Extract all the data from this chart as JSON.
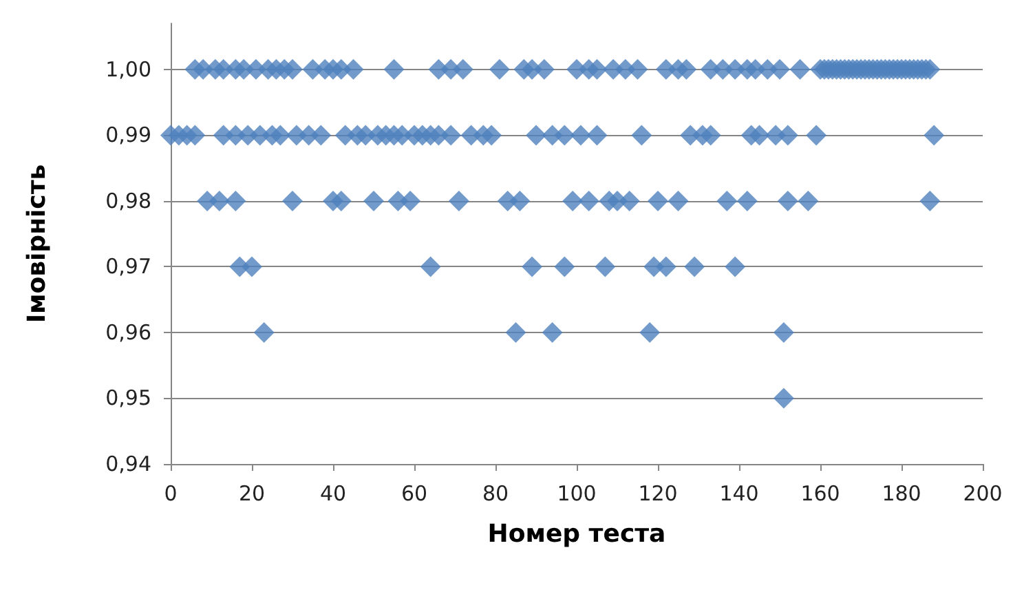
{
  "chart_data": {
    "type": "scatter",
    "xlabel": "Номер теста",
    "ylabel": "Імовірність",
    "marker": "diamond",
    "grid": "y",
    "xlim": [
      0,
      200
    ],
    "xticks": [
      0,
      20,
      40,
      60,
      80,
      100,
      120,
      140,
      160,
      180,
      200
    ],
    "ylim": [
      0.94,
      1.007
    ],
    "yticks": [
      {
        "value": 0.94,
        "label": "0,94"
      },
      {
        "value": 0.95,
        "label": "0,95"
      },
      {
        "value": 0.96,
        "label": "0,96"
      },
      {
        "value": 0.97,
        "label": "0,97"
      },
      {
        "value": 0.98,
        "label": "0,98"
      },
      {
        "value": 0.99,
        "label": "0,99"
      },
      {
        "value": 1.0,
        "label": "1,00"
      }
    ],
    "series": [
      {
        "color": "#4f81bd",
        "x": [
          6,
          8,
          11,
          13,
          16,
          18,
          21,
          24,
          26,
          28,
          30,
          35,
          38,
          40,
          42,
          45,
          55,
          66,
          69,
          72,
          81,
          87,
          89,
          92,
          100,
          103,
          105,
          109,
          112,
          115,
          122,
          125,
          127,
          133,
          136,
          139,
          142,
          144,
          147,
          150,
          155,
          160,
          161,
          162,
          163,
          164,
          165,
          166,
          167,
          168,
          169,
          170,
          171,
          172,
          173,
          174,
          175,
          176,
          177,
          178,
          179,
          180,
          181,
          182,
          183,
          184,
          185,
          186,
          187
        ],
        "values": [
          1.0,
          1.0,
          1.0,
          1.0,
          1.0,
          1.0,
          1.0,
          1.0,
          1.0,
          1.0,
          1.0,
          1.0,
          1.0,
          1.0,
          1.0,
          1.0,
          1.0,
          1.0,
          1.0,
          1.0,
          1.0,
          1.0,
          1.0,
          1.0,
          1.0,
          1.0,
          1.0,
          1.0,
          1.0,
          1.0,
          1.0,
          1.0,
          1.0,
          1.0,
          1.0,
          1.0,
          1.0,
          1.0,
          1.0,
          1.0,
          1.0,
          1.0,
          1.0,
          1.0,
          1.0,
          1.0,
          1.0,
          1.0,
          1.0,
          1.0,
          1.0,
          1.0,
          1.0,
          1.0,
          1.0,
          1.0,
          1.0,
          1.0,
          1.0,
          1.0,
          1.0,
          1.0,
          1.0,
          1.0,
          1.0,
          1.0,
          1.0,
          1.0,
          1.0
        ]
      },
      {
        "color": "#4f81bd",
        "x": [
          0,
          2,
          4,
          6,
          13,
          16,
          19,
          22,
          25,
          27,
          31,
          34,
          37,
          43,
          46,
          48,
          51,
          53,
          55,
          57,
          60,
          62,
          64,
          66,
          69,
          74,
          77,
          79,
          90,
          94,
          97,
          101,
          105,
          116,
          128,
          131,
          133,
          143,
          145,
          149,
          152,
          159,
          188
        ],
        "values": [
          0.99,
          0.99,
          0.99,
          0.99,
          0.99,
          0.99,
          0.99,
          0.99,
          0.99,
          0.99,
          0.99,
          0.99,
          0.99,
          0.99,
          0.99,
          0.99,
          0.99,
          0.99,
          0.99,
          0.99,
          0.99,
          0.99,
          0.99,
          0.99,
          0.99,
          0.99,
          0.99,
          0.99,
          0.99,
          0.99,
          0.99,
          0.99,
          0.99,
          0.99,
          0.99,
          0.99,
          0.99,
          0.99,
          0.99,
          0.99,
          0.99,
          0.99,
          0.99
        ]
      },
      {
        "color": "#4f81bd",
        "x": [
          9,
          12,
          16,
          30,
          40,
          42,
          50,
          56,
          59,
          71,
          83,
          86,
          99,
          103,
          108,
          110,
          113,
          120,
          125,
          137,
          142,
          152,
          157,
          187
        ],
        "values": [
          0.98,
          0.98,
          0.98,
          0.98,
          0.98,
          0.98,
          0.98,
          0.98,
          0.98,
          0.98,
          0.98,
          0.98,
          0.98,
          0.98,
          0.98,
          0.98,
          0.98,
          0.98,
          0.98,
          0.98,
          0.98,
          0.98,
          0.98,
          0.98
        ]
      },
      {
        "color": "#4f81bd",
        "x": [
          17,
          20,
          64,
          89,
          97,
          107,
          119,
          122,
          129,
          139
        ],
        "values": [
          0.97,
          0.97,
          0.97,
          0.97,
          0.97,
          0.97,
          0.97,
          0.97,
          0.97,
          0.97
        ]
      },
      {
        "color": "#4f81bd",
        "x": [
          23,
          85,
          94,
          118,
          151
        ],
        "values": [
          0.96,
          0.96,
          0.96,
          0.96,
          0.96
        ]
      },
      {
        "color": "#4f81bd",
        "x": [
          151
        ],
        "values": [
          0.95
        ]
      }
    ]
  }
}
